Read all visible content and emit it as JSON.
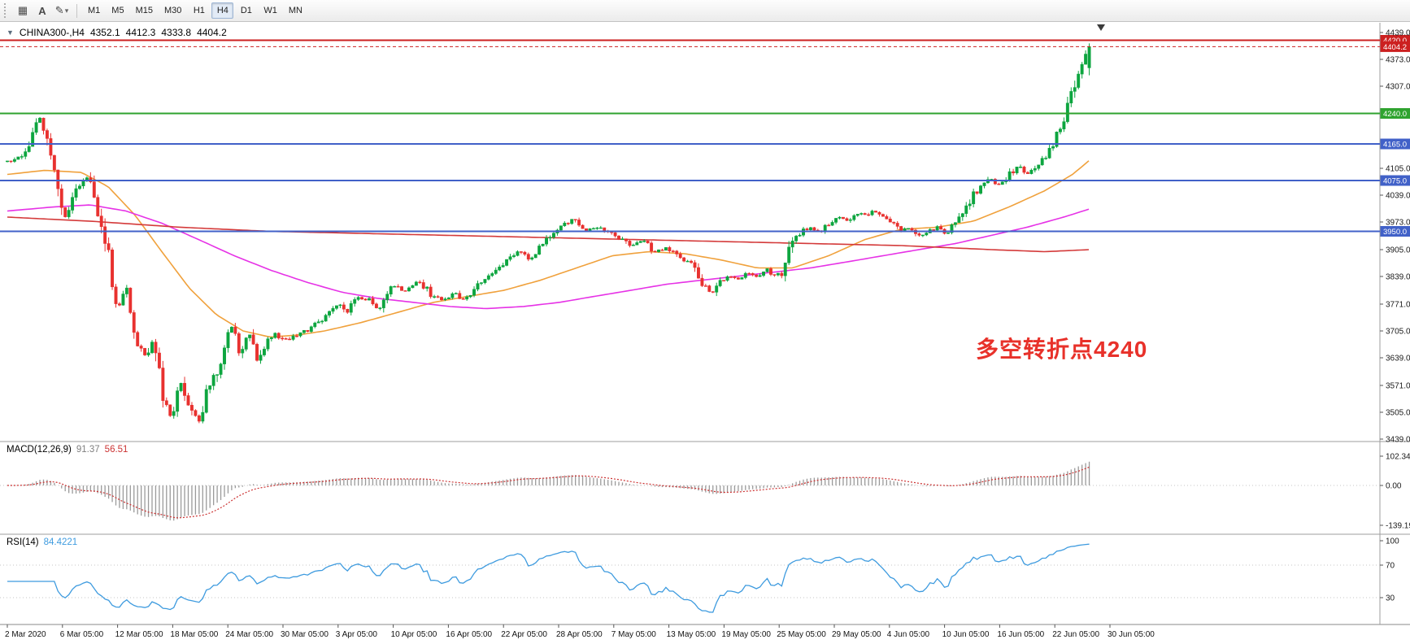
{
  "toolbar": {
    "icons": [
      {
        "name": "chart-grid-icon",
        "glyph": "▦"
      },
      {
        "name": "text-label-icon",
        "glyph": "A"
      },
      {
        "name": "draw-tools-icon",
        "glyph": "✎"
      },
      {
        "name": "caret-down-icon",
        "glyph": "▾"
      }
    ],
    "timeframes": [
      "M1",
      "M5",
      "M15",
      "M30",
      "H1",
      "H4",
      "D1",
      "W1",
      "MN"
    ],
    "active_timeframe": "H4"
  },
  "chart": {
    "one_click_arrow": "▼",
    "title": "CHINA300-,H4",
    "ohlc": {
      "open": "4352.1",
      "high": "4412.3",
      "low": "4333.8",
      "close": "4404.2"
    },
    "annotation": {
      "text": "多空转折点4240",
      "color": "#e8312a"
    },
    "colors": {
      "up": "#0da53f",
      "down": "#e8312f",
      "ma_fast": "#f0a13c",
      "ma_mid": "#e632e6",
      "ma_slow": "#d43a3a"
    },
    "y_axis": {
      "min": 3439,
      "max": 4439,
      "ticks": [
        "4439.0",
        "4373.0",
        "4307.0",
        "4105.0",
        "4039.0",
        "3973.0",
        "3905.0",
        "3839.0",
        "3771.0",
        "3705.0",
        "3639.0",
        "3571.0",
        "3505.0",
        "3439.0"
      ]
    },
    "levels": [
      {
        "price": 4420.0,
        "label": "4420.0",
        "color": "#cc2020",
        "style": "solid"
      },
      {
        "price": 4404.2,
        "label": "4404.2",
        "color": "#cc2020",
        "style": "dotted"
      },
      {
        "price": 4240.0,
        "label": "4240.0",
        "color": "#2fa32f",
        "style": "solid"
      },
      {
        "price": 4165.0,
        "label": "4165.0",
        "color": "#4161c8",
        "style": "solid"
      },
      {
        "price": 4075.0,
        "label": "4075.0",
        "color": "#4161c8",
        "style": "solid"
      },
      {
        "price": 3950.0,
        "label": "3950.0",
        "color": "#4161c8",
        "style": "solid"
      }
    ],
    "price_path": [
      [
        9,
        4120
      ],
      [
        28,
        4135
      ],
      [
        50,
        4230
      ],
      [
        66,
        4090
      ],
      [
        80,
        3985
      ],
      [
        94,
        4050
      ],
      [
        109,
        4085
      ],
      [
        122,
        3990
      ],
      [
        133,
        3900
      ],
      [
        144,
        3760
      ],
      [
        155,
        3810
      ],
      [
        166,
        3700
      ],
      [
        177,
        3640
      ],
      [
        188,
        3680
      ],
      [
        199,
        3560
      ],
      [
        211,
        3480
      ],
      [
        222,
        3580
      ],
      [
        233,
        3520
      ],
      [
        244,
        3480
      ],
      [
        255,
        3560
      ],
      [
        266,
        3600
      ],
      [
        277,
        3680
      ],
      [
        286,
        3720
      ],
      [
        294,
        3650
      ],
      [
        305,
        3700
      ],
      [
        316,
        3630
      ],
      [
        327,
        3680
      ],
      [
        338,
        3700
      ],
      [
        349,
        3680
      ],
      [
        360,
        3690
      ],
      [
        371,
        3700
      ],
      [
        382,
        3710
      ],
      [
        399,
        3740
      ],
      [
        416,
        3770
      ],
      [
        427,
        3745
      ],
      [
        438,
        3790
      ],
      [
        454,
        3780
      ],
      [
        465,
        3760
      ],
      [
        482,
        3820
      ],
      [
        499,
        3800
      ],
      [
        515,
        3830
      ],
      [
        532,
        3790
      ],
      [
        543,
        3780
      ],
      [
        560,
        3800
      ],
      [
        571,
        3780
      ],
      [
        587,
        3820
      ],
      [
        604,
        3840
      ],
      [
        620,
        3870
      ],
      [
        637,
        3900
      ],
      [
        654,
        3880
      ],
      [
        670,
        3930
      ],
      [
        687,
        3960
      ],
      [
        704,
        3980
      ],
      [
        720,
        3950
      ],
      [
        731,
        3960
      ],
      [
        748,
        3950
      ],
      [
        765,
        3930
      ],
      [
        776,
        3910
      ],
      [
        792,
        3930
      ],
      [
        803,
        3900
      ],
      [
        820,
        3910
      ],
      [
        837,
        3880
      ],
      [
        853,
        3870
      ],
      [
        864,
        3820
      ],
      [
        875,
        3800
      ],
      [
        886,
        3830
      ],
      [
        898,
        3840
      ],
      [
        909,
        3830
      ],
      [
        920,
        3850
      ],
      [
        931,
        3840
      ],
      [
        942,
        3860
      ],
      [
        953,
        3840
      ],
      [
        964,
        3850
      ],
      [
        975,
        3930
      ],
      [
        986,
        3950
      ],
      [
        997,
        3960
      ],
      [
        1008,
        3950
      ],
      [
        1019,
        3970
      ],
      [
        1030,
        3985
      ],
      [
        1042,
        3975
      ],
      [
        1053,
        3995
      ],
      [
        1064,
        3990
      ],
      [
        1075,
        4000
      ],
      [
        1086,
        3985
      ],
      [
        1097,
        3970
      ],
      [
        1108,
        3950
      ],
      [
        1119,
        3960
      ],
      [
        1130,
        3940
      ],
      [
        1141,
        3950
      ],
      [
        1152,
        3960
      ],
      [
        1163,
        3945
      ],
      [
        1175,
        3970
      ],
      [
        1186,
        4000
      ],
      [
        1197,
        4040
      ],
      [
        1208,
        4060
      ],
      [
        1219,
        4080
      ],
      [
        1230,
        4060
      ],
      [
        1241,
        4090
      ],
      [
        1252,
        4110
      ],
      [
        1263,
        4090
      ],
      [
        1274,
        4110
      ],
      [
        1285,
        4130
      ],
      [
        1296,
        4170
      ],
      [
        1308,
        4220
      ],
      [
        1316,
        4270
      ],
      [
        1325,
        4330
      ],
      [
        1332,
        4365
      ],
      [
        1340,
        4400
      ]
    ],
    "ma_lines": [
      {
        "name": "ma-fast-orange",
        "color": "#f0a13c",
        "path": [
          [
            9,
            4090
          ],
          [
            55,
            4100
          ],
          [
            100,
            4095
          ],
          [
            133,
            4060
          ],
          [
            166,
            3990
          ],
          [
            199,
            3900
          ],
          [
            233,
            3810
          ],
          [
            266,
            3745
          ],
          [
            299,
            3705
          ],
          [
            332,
            3690
          ],
          [
            366,
            3695
          ],
          [
            399,
            3705
          ],
          [
            443,
            3725
          ],
          [
            488,
            3750
          ],
          [
            532,
            3775
          ],
          [
            576,
            3790
          ],
          [
            620,
            3805
          ],
          [
            665,
            3830
          ],
          [
            709,
            3860
          ],
          [
            753,
            3890
          ],
          [
            798,
            3900
          ],
          [
            842,
            3895
          ],
          [
            886,
            3880
          ],
          [
            931,
            3860
          ],
          [
            975,
            3860
          ],
          [
            1019,
            3890
          ],
          [
            1064,
            3930
          ],
          [
            1108,
            3955
          ],
          [
            1152,
            3960
          ],
          [
            1197,
            3975
          ],
          [
            1241,
            4010
          ],
          [
            1285,
            4050
          ],
          [
            1319,
            4090
          ],
          [
            1340,
            4125
          ]
        ]
      },
      {
        "name": "ma-mid-magenta",
        "color": "#e632e6",
        "path": [
          [
            9,
            4000
          ],
          [
            66,
            4010
          ],
          [
            111,
            4015
          ],
          [
            155,
            4000
          ],
          [
            199,
            3970
          ],
          [
            244,
            3930
          ],
          [
            288,
            3890
          ],
          [
            332,
            3855
          ],
          [
            377,
            3825
          ],
          [
            421,
            3800
          ],
          [
            465,
            3785
          ],
          [
            510,
            3775
          ],
          [
            554,
            3765
          ],
          [
            598,
            3760
          ],
          [
            643,
            3765
          ],
          [
            687,
            3775
          ],
          [
            731,
            3790
          ],
          [
            776,
            3805
          ],
          [
            820,
            3820
          ],
          [
            864,
            3830
          ],
          [
            909,
            3840
          ],
          [
            953,
            3850
          ],
          [
            997,
            3860
          ],
          [
            1042,
            3875
          ],
          [
            1086,
            3890
          ],
          [
            1130,
            3905
          ],
          [
            1175,
            3920
          ],
          [
            1219,
            3940
          ],
          [
            1263,
            3960
          ],
          [
            1308,
            3985
          ],
          [
            1340,
            4005
          ]
        ]
      },
      {
        "name": "ma-slow-red",
        "color": "#d43a3a",
        "path": [
          [
            9,
            3985
          ],
          [
            111,
            3975
          ],
          [
            222,
            3960
          ],
          [
            332,
            3950
          ],
          [
            443,
            3945
          ],
          [
            554,
            3940
          ],
          [
            665,
            3935
          ],
          [
            776,
            3930
          ],
          [
            886,
            3925
          ],
          [
            997,
            3920
          ],
          [
            1108,
            3915
          ],
          [
            1219,
            3905
          ],
          [
            1285,
            3900
          ],
          [
            1340,
            3905
          ]
        ]
      }
    ]
  },
  "macd": {
    "label": "MACD(12,26,9)",
    "value_main": "91.37",
    "value_signal": "56.51",
    "axis": [
      "102.34",
      "0.00",
      "-139.19"
    ],
    "params": {
      "fast": 12,
      "slow": 26,
      "signal": 9
    }
  },
  "rsi": {
    "label": "RSI(14)",
    "value": "84.4221",
    "axis": [
      "100",
      "70",
      "30"
    ],
    "levels": [
      70,
      30
    ],
    "period": 14
  },
  "x_axis": {
    "labels": [
      "2 Mar 2020",
      "6 Mar 05:00",
      "12 Mar 05:00",
      "18 Mar 05:00",
      "24 Mar 05:00",
      "30 Mar 05:00",
      "3 Apr 05:00",
      "10 Apr 05:00",
      "16 Apr 05:00",
      "22 Apr 05:00",
      "28 Apr 05:00",
      "7 May 05:00",
      "13 May 05:00",
      "19 May 05:00",
      "25 May 05:00",
      "29 May 05:00",
      "4 Jun 05:00",
      "10 Jun 05:00",
      "16 Jun 05:00",
      "22 Jun 05:00",
      "30 Jun 05:00"
    ]
  }
}
